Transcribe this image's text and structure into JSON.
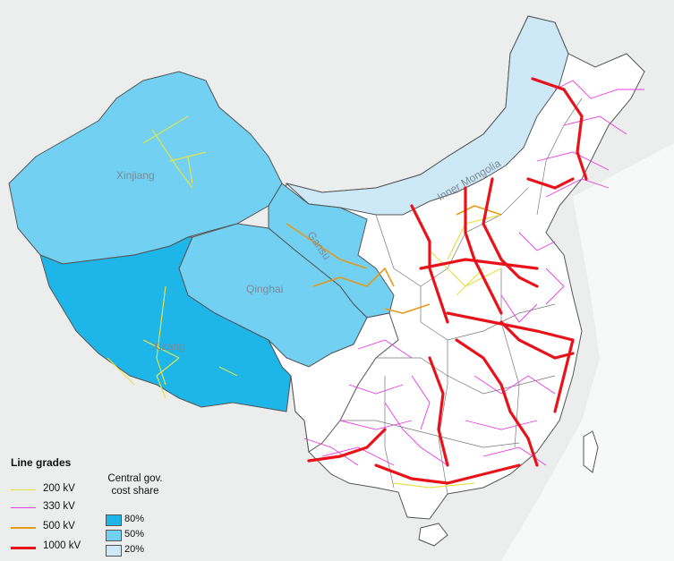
{
  "regions": {
    "xinjiang": "Xinjiang",
    "xizang": "Xizang",
    "qinghai": "Qinghai",
    "gansu": "Gansu",
    "inner_mongolia": "Inner Mongolia"
  },
  "legend_lines": {
    "title": "Line grades",
    "items": [
      {
        "label": "200 kV",
        "color": "#e3e34a"
      },
      {
        "label": "330 kV",
        "color": "#e83be0"
      },
      {
        "label": "500 kV",
        "color": "#e69a1a"
      },
      {
        "label": "1000 kV",
        "color": "#e8121a"
      }
    ]
  },
  "legend_share": {
    "title_line1": "Central gov.",
    "title_line2": "cost share",
    "items": [
      {
        "label": "80%",
        "color": "#1eb5e9"
      },
      {
        "label": "50%",
        "color": "#72d0f2"
      },
      {
        "label": "20%",
        "color": "#cde9f7"
      }
    ]
  },
  "colors": {
    "share_80": "#1eb5e9",
    "share_50": "#72d0f2",
    "share_20": "#cde9f7",
    "background": "#eef0ef",
    "sea": "#f6f8f8"
  }
}
